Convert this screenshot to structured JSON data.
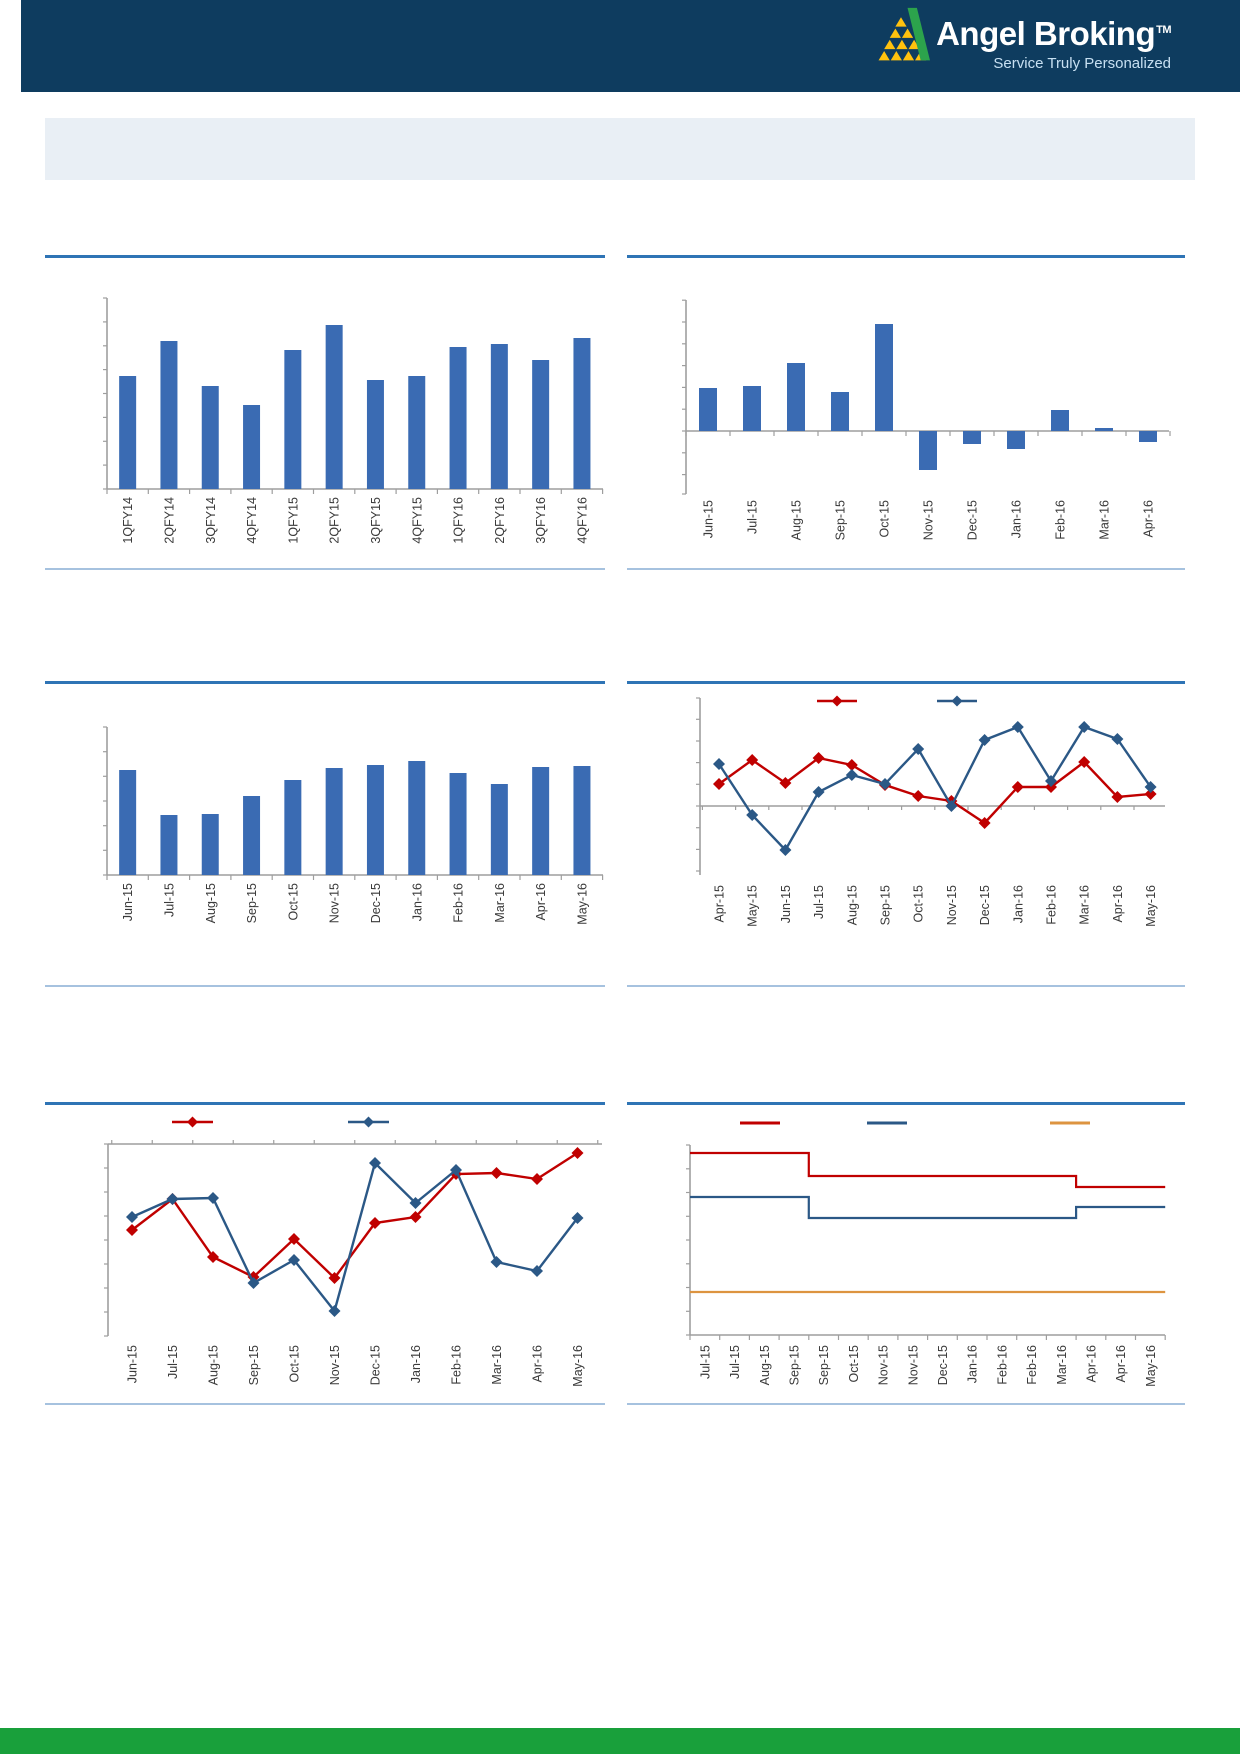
{
  "header": {
    "brand": "Angel Broking",
    "trademark_symbol": "TM",
    "tagline": "Service Truly Personalized"
  },
  "banner": {
    "title": ""
  },
  "colors": {
    "header_navy": "#0e3c5f",
    "rule_dark_blue": "#2e74b5",
    "rule_light_blue": "#a6c2df",
    "bar_blue": "#3a6bb3",
    "series_red": "#c00000",
    "series_blue": "#2b5886",
    "series_orange": "#dd9440",
    "footer_green": "#19a03b",
    "axis_gray": "#9e9e9e",
    "banner_bg": "#e9eff5",
    "logo_yellow": "#ffc20e",
    "logo_green": "#2ca34c"
  },
  "chart_data": [
    {
      "id": "chart1",
      "position": "top-left",
      "type": "bar",
      "title": "",
      "categories": [
        "1QFY14",
        "2QFY14",
        "3QFY14",
        "4QFY14",
        "1QFY15",
        "2QFY15",
        "3QFY15",
        "4QFY15",
        "1QFY16",
        "2QFY16",
        "3QFY16",
        "4QFY16"
      ],
      "series": [
        {
          "name": "",
          "color": "#3a6bb3",
          "values": [
            113,
            148,
            103,
            84,
            139,
            164,
            109,
            113,
            142,
            145,
            129,
            151
          ]
        }
      ],
      "xlabel": "",
      "ylabel": "",
      "value_unit": "relative (y-axis value labels not printed in source)",
      "grid": false,
      "legend": null
    },
    {
      "id": "chart2",
      "position": "top-right",
      "type": "bar",
      "title": "",
      "categories": [
        "Jun-15",
        "Jul-15",
        "Aug-15",
        "Sep-15",
        "Oct-15",
        "Nov-15",
        "Dec-15",
        "Jan-16",
        "Feb-16",
        "Mar-16",
        "Apr-16"
      ],
      "series": [
        {
          "name": "",
          "color": "#3a6bb3",
          "values": [
            43,
            45,
            68,
            39,
            107,
            -39,
            -13,
            -18,
            21,
            3,
            -11
          ]
        }
      ],
      "xlabel": "",
      "ylabel": "",
      "value_unit": "relative (y-axis value labels not printed in source)",
      "grid": false,
      "legend": null
    },
    {
      "id": "chart3",
      "position": "middle-left",
      "type": "bar",
      "title": "",
      "categories": [
        "Jun-15",
        "Jul-15",
        "Aug-15",
        "Sep-15",
        "Oct-15",
        "Nov-15",
        "Dec-15",
        "Jan-16",
        "Feb-16",
        "Mar-16",
        "Apr-16",
        "May-16"
      ],
      "series": [
        {
          "name": "",
          "color": "#3a6bb3",
          "values": [
            105,
            60,
            61,
            79,
            95,
            107,
            110,
            114,
            102,
            91,
            108,
            109
          ]
        }
      ],
      "xlabel": "",
      "ylabel": "",
      "value_unit": "relative (y-axis value labels not printed in source)",
      "grid": false,
      "legend": null
    },
    {
      "id": "chart4",
      "position": "middle-right",
      "type": "line",
      "title": "",
      "categories": [
        "Apr-15",
        "May-15",
        "Jun-15",
        "Jul-15",
        "Aug-15",
        "Sep-15",
        "Oct-15",
        "Nov-15",
        "Dec-15",
        "Jan-16",
        "Feb-16",
        "Mar-16",
        "Apr-16",
        "May-16"
      ],
      "series": [
        {
          "name": "",
          "color": "#c00000",
          "marker": "diamond",
          "values": [
            22,
            46,
            23,
            48,
            41,
            21,
            10,
            5,
            -17,
            19,
            19,
            44,
            9,
            12
          ]
        },
        {
          "name": "",
          "color": "#2b5886",
          "marker": "diamond",
          "values": [
            42,
            -9,
            -44,
            14,
            31,
            22,
            57,
            0,
            66,
            79,
            25,
            79,
            67,
            19
          ]
        }
      ],
      "xlabel": "",
      "ylabel": "",
      "value_unit": "relative to zero line (axis value labels not printed in source)",
      "grid": false,
      "legend": {
        "position": "top",
        "entries": [
          {
            "label": "",
            "color": "#c00000"
          },
          {
            "label": "",
            "color": "#2b5886"
          }
        ]
      }
    },
    {
      "id": "chart5",
      "position": "bottom-left",
      "type": "line",
      "title": "",
      "categories": [
        "Jun-15",
        "Jul-15",
        "Aug-15",
        "Sep-15",
        "Oct-15",
        "Nov-15",
        "Dec-15",
        "Jan-16",
        "Feb-16",
        "Mar-16",
        "Apr-16",
        "May-16"
      ],
      "series": [
        {
          "name": "",
          "color": "#c00000",
          "marker": "diamond",
          "values": [
            106,
            137,
            79,
            59,
            97,
            58,
            113,
            119,
            162,
            163,
            157,
            183
          ]
        },
        {
          "name": "",
          "color": "#2b5886",
          "marker": "diamond",
          "values": [
            119,
            137,
            138,
            53,
            76,
            25,
            173,
            133,
            166,
            74,
            65,
            118
          ]
        }
      ],
      "xlabel": "",
      "ylabel": "",
      "value_unit": "relative (y-axis value labels not printed in source)",
      "grid": false,
      "legend": {
        "position": "top",
        "entries": [
          {
            "label": "",
            "color": "#c00000"
          },
          {
            "label": "",
            "color": "#2b5886"
          }
        ]
      }
    },
    {
      "id": "chart6",
      "position": "bottom-right",
      "type": "line-step",
      "title": "",
      "categories": [
        "Jul-15",
        "Jul-15",
        "Aug-15",
        "Sep-15",
        "Sep-15",
        "Oct-15",
        "Nov-15",
        "Nov-15",
        "Dec-15",
        "Jan-16",
        "Feb-16",
        "Feb-16",
        "Mar-16",
        "Apr-16",
        "Apr-16",
        "May-16"
      ],
      "series": [
        {
          "name": "",
          "color": "#c00000",
          "values": [
            182,
            182,
            182,
            182,
            159,
            159,
            159,
            159,
            159,
            159,
            159,
            159,
            159,
            148,
            148,
            148
          ]
        },
        {
          "name": "",
          "color": "#2b5886",
          "values": [
            138,
            138,
            138,
            138,
            117,
            117,
            117,
            117,
            117,
            117,
            117,
            117,
            117,
            128,
            128,
            128
          ]
        },
        {
          "name": "",
          "color": "#dd9440",
          "values": [
            43,
            43,
            43,
            43,
            43,
            43,
            43,
            43,
            43,
            43,
            43,
            43,
            43,
            43,
            43,
            43
          ]
        }
      ],
      "xlabel": "",
      "ylabel": "",
      "value_unit": "relative (y-axis value labels not printed in source)",
      "grid": false,
      "legend": {
        "position": "top",
        "entries": [
          {
            "label": "",
            "color": "#c00000"
          },
          {
            "label": "",
            "color": "#2b5886"
          },
          {
            "label": "",
            "color": "#dd9440"
          }
        ]
      }
    }
  ],
  "footer": {
    "text": ""
  }
}
